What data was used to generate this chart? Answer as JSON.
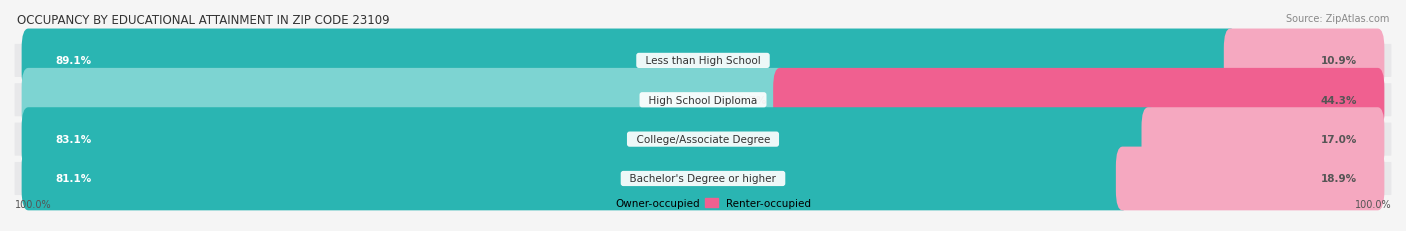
{
  "title": "OCCUPANCY BY EDUCATIONAL ATTAINMENT IN ZIP CODE 23109",
  "source": "Source: ZipAtlas.com",
  "categories": [
    "Less than High School",
    "High School Diploma",
    "College/Associate Degree",
    "Bachelor's Degree or higher"
  ],
  "owner_pct": [
    89.1,
    55.7,
    83.1,
    81.1
  ],
  "renter_pct": [
    10.9,
    44.3,
    17.0,
    18.9
  ],
  "owner_color_dark": "#2ab5b2",
  "owner_color_light": "#7dd4d2",
  "renter_color_dark": "#f06090",
  "renter_color_light": "#f5a8c0",
  "row_bg_color": "#e8e8ea",
  "background_color": "#f5f5f5",
  "title_fontsize": 8.5,
  "label_fontsize": 7.5,
  "value_fontsize": 7.5,
  "legend_fontsize": 7.5,
  "source_fontsize": 7,
  "bar_height": 0.62,
  "axis_label_left": "100.0%",
  "axis_label_right": "100.0%"
}
